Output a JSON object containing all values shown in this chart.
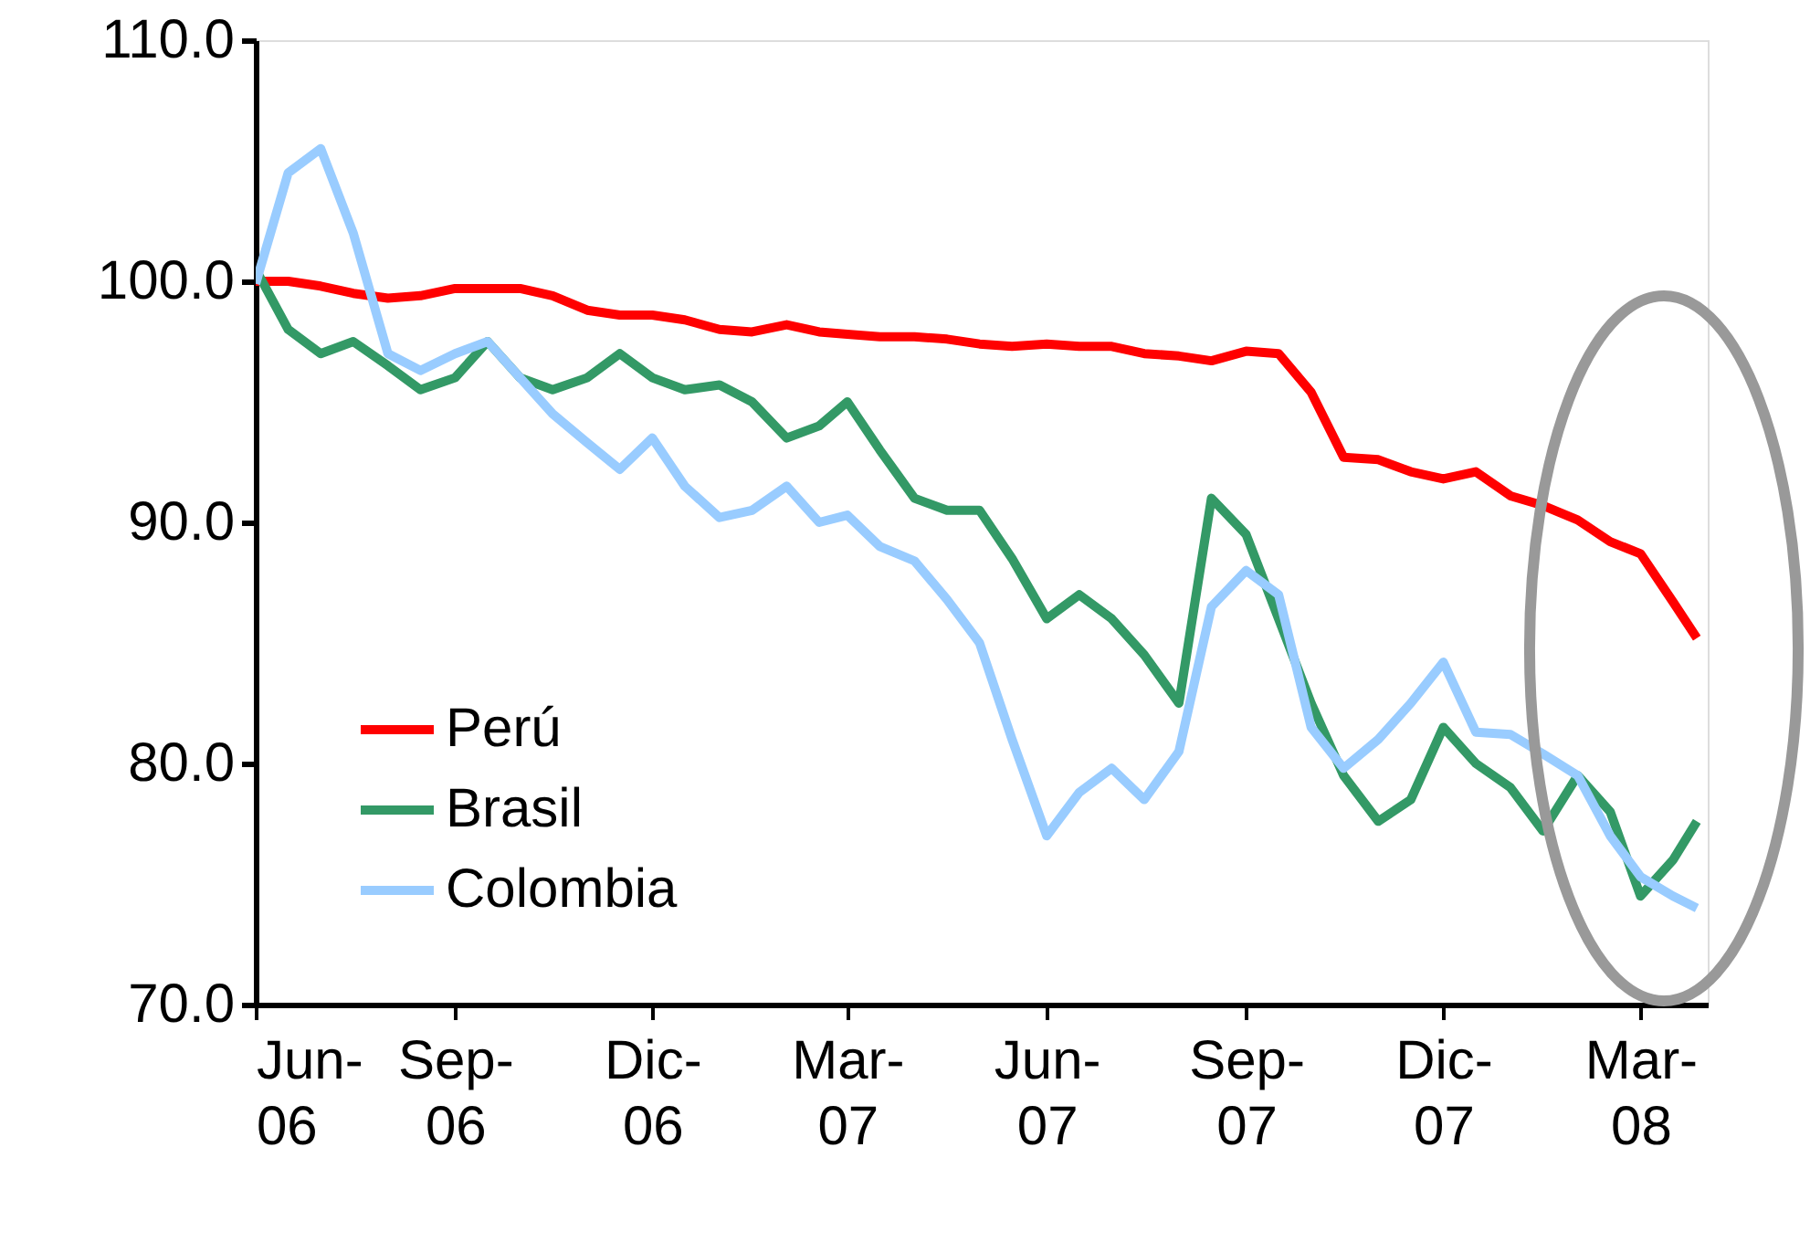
{
  "chart_data": {
    "type": "line",
    "x": [
      "2006-06-01",
      "2006-06-16",
      "2006-07-01",
      "2006-07-16",
      "2006-08-01",
      "2006-08-16",
      "2006-09-01",
      "2006-09-16",
      "2006-10-01",
      "2006-10-16",
      "2006-11-01",
      "2006-11-16",
      "2006-12-01",
      "2006-12-16",
      "2007-01-01",
      "2007-01-16",
      "2007-02-01",
      "2007-02-16",
      "2007-03-01",
      "2007-03-16",
      "2007-04-01",
      "2007-04-16",
      "2007-05-01",
      "2007-05-16",
      "2007-06-01",
      "2007-06-16",
      "2007-07-01",
      "2007-07-16",
      "2007-08-01",
      "2007-08-16",
      "2007-09-01",
      "2007-09-16",
      "2007-10-01",
      "2007-10-16",
      "2007-11-01",
      "2007-11-16",
      "2007-12-01",
      "2007-12-16",
      "2008-01-01",
      "2008-01-16",
      "2008-02-01",
      "2008-02-16",
      "2008-03-01",
      "2008-03-16",
      "2008-03-27"
    ],
    "series": [
      {
        "name": "Perú",
        "color": "#ff0000",
        "values": [
          100.0,
          100.0,
          99.8,
          99.5,
          99.3,
          99.4,
          99.7,
          99.7,
          99.7,
          99.4,
          98.8,
          98.6,
          98.6,
          98.4,
          98.0,
          97.9,
          98.2,
          97.9,
          97.8,
          97.7,
          97.7,
          97.6,
          97.4,
          97.3,
          97.4,
          97.3,
          97.3,
          97.0,
          96.9,
          96.7,
          97.1,
          97.0,
          95.4,
          92.7,
          92.6,
          92.1,
          91.8,
          92.1,
          91.1,
          90.7,
          90.1,
          89.2,
          88.7,
          86.7,
          85.2
        ]
      },
      {
        "name": "Brasil",
        "color": "#339966",
        "values": [
          100.5,
          98.0,
          97.0,
          97.5,
          96.5,
          95.5,
          96.0,
          97.5,
          96.0,
          95.5,
          96.0,
          97.0,
          96.0,
          95.5,
          95.7,
          95.0,
          93.5,
          94.0,
          95.0,
          93.0,
          91.0,
          90.5,
          90.5,
          88.5,
          86.0,
          87.0,
          86.0,
          84.5,
          82.5,
          91.0,
          89.5,
          86.0,
          82.5,
          79.5,
          77.6,
          78.5,
          81.5,
          80.0,
          79.0,
          77.2,
          79.5,
          78.0,
          74.5,
          76.0,
          77.6
        ]
      },
      {
        "name": "Colombia",
        "color": "#99ccff",
        "values": [
          99.9,
          104.5,
          105.5,
          102.0,
          97.0,
          96.3,
          97.0,
          97.5,
          96.0,
          94.5,
          93.3,
          92.2,
          93.5,
          91.5,
          90.2,
          90.5,
          91.5,
          90.0,
          90.3,
          89.0,
          88.4,
          86.8,
          85.0,
          81.0,
          77.0,
          78.8,
          79.8,
          78.5,
          80.5,
          86.5,
          88.0,
          87.0,
          81.5,
          79.8,
          81.0,
          82.5,
          84.2,
          81.3,
          81.2,
          80.4,
          79.5,
          77.0,
          75.3,
          74.5,
          74.0
        ]
      }
    ],
    "xlim": [
      "2006-06-01",
      "2008-04-01"
    ],
    "xticks": [
      {
        "value": "2006-06-01",
        "label": "Jun-06"
      },
      {
        "value": "2006-09-01",
        "label": "Sep-06"
      },
      {
        "value": "2006-12-01",
        "label": "Dic-06"
      },
      {
        "value": "2007-03-01",
        "label": "Mar-07"
      },
      {
        "value": "2007-06-01",
        "label": "Jun-07"
      },
      {
        "value": "2007-09-01",
        "label": "Sep-07"
      },
      {
        "value": "2007-12-01",
        "label": "Dic-07"
      },
      {
        "value": "2008-03-01",
        "label": "Mar-08"
      }
    ],
    "ylim": [
      70,
      110
    ],
    "yticks": [
      {
        "value": 70,
        "label": "70.0"
      },
      {
        "value": 80,
        "label": "80.0"
      },
      {
        "value": 90,
        "label": "90.0"
      },
      {
        "value": 100,
        "label": "100.0"
      },
      {
        "value": 110,
        "label": "110.0"
      }
    ],
    "grid": false,
    "legend": "bottom left",
    "marker": "none",
    "line_style": "solid"
  }
}
